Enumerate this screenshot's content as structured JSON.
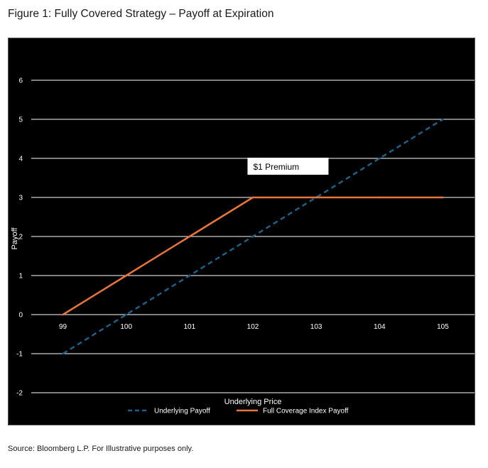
{
  "figure": {
    "title": "Figure 1: Fully Covered Strategy – Payoff at Expiration",
    "source": "Source: Bloomberg L.P. For Illustrative purposes only."
  },
  "chart_data": {
    "type": "line",
    "title": "",
    "xlabel": "Underlying Price",
    "ylabel": "Payoff",
    "x": [
      99,
      100,
      101,
      102,
      103,
      104,
      105
    ],
    "xlim": [
      98.5,
      105.5
    ],
    "ylim": [
      -2,
      6
    ],
    "yticks": [
      -2,
      -1,
      0,
      1,
      2,
      3,
      4,
      5,
      6
    ],
    "grid": true,
    "legend": "bottom",
    "series": [
      {
        "name": "Underlying Payoff",
        "values": [
          -1,
          0,
          1,
          2,
          3,
          4,
          5
        ],
        "color": "#1f5f86",
        "style": "dashed"
      },
      {
        "name": "Full Coverage Index Payoff",
        "values": [
          0,
          1,
          2,
          3,
          3,
          3,
          3
        ],
        "color": "#e8743b",
        "style": "solid"
      }
    ],
    "annotations": [
      {
        "text": "$1 Premium",
        "x": 102.05,
        "y": 3.78
      }
    ]
  }
}
